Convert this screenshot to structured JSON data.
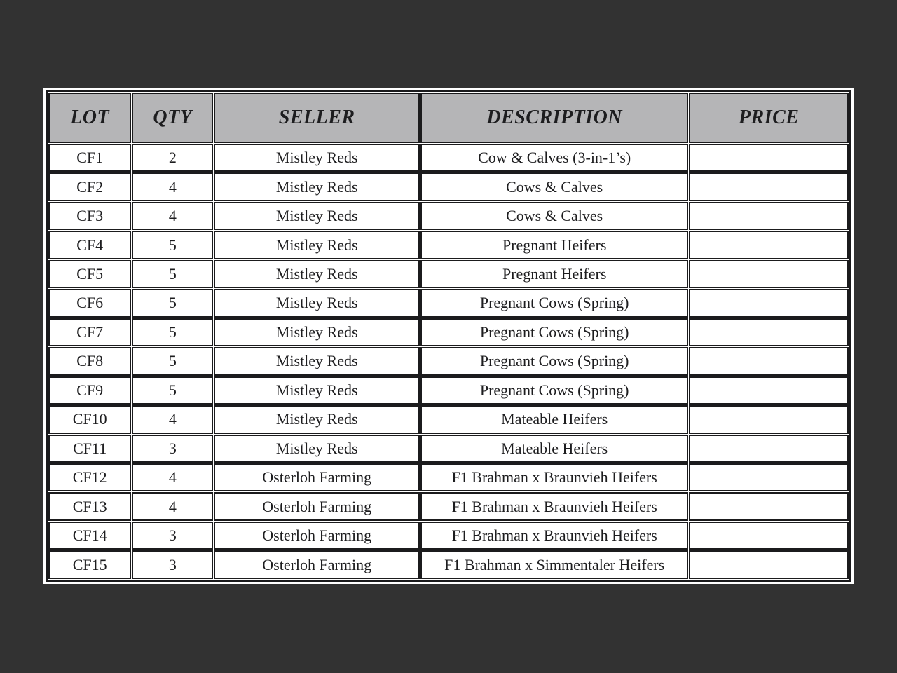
{
  "colors": {
    "background": "#323232",
    "page": "#ffffff",
    "header_fill": "#b5b5b7",
    "border": "#1b1b1d",
    "text": "#1d1d1f"
  },
  "table": {
    "headers": [
      "LOT",
      "QTY",
      "SELLER",
      "DESCRIPTION",
      "PRICE"
    ],
    "rows": [
      {
        "lot": "CF1",
        "qty": "2",
        "seller": "Mistley Reds",
        "description": "Cow & Calves (3-in-1’s)",
        "price": ""
      },
      {
        "lot": "CF2",
        "qty": "4",
        "seller": "Mistley Reds",
        "description": "Cows & Calves",
        "price": ""
      },
      {
        "lot": "CF3",
        "qty": "4",
        "seller": "Mistley Reds",
        "description": "Cows & Calves",
        "price": ""
      },
      {
        "lot": "CF4",
        "qty": "5",
        "seller": "Mistley Reds",
        "description": "Pregnant Heifers",
        "price": ""
      },
      {
        "lot": "CF5",
        "qty": "5",
        "seller": "Mistley Reds",
        "description": "Pregnant Heifers",
        "price": ""
      },
      {
        "lot": "CF6",
        "qty": "5",
        "seller": "Mistley Reds",
        "description": "Pregnant Cows (Spring)",
        "price": ""
      },
      {
        "lot": "CF7",
        "qty": "5",
        "seller": "Mistley Reds",
        "description": "Pregnant Cows (Spring)",
        "price": ""
      },
      {
        "lot": "CF8",
        "qty": "5",
        "seller": "Mistley Reds",
        "description": "Pregnant Cows (Spring)",
        "price": ""
      },
      {
        "lot": "CF9",
        "qty": "5",
        "seller": "Mistley Reds",
        "description": "Pregnant Cows (Spring)",
        "price": ""
      },
      {
        "lot": "CF10",
        "qty": "4",
        "seller": "Mistley Reds",
        "description": "Mateable Heifers",
        "price": ""
      },
      {
        "lot": "CF11",
        "qty": "3",
        "seller": "Mistley Reds",
        "description": "Mateable Heifers",
        "price": ""
      },
      {
        "lot": "CF12",
        "qty": "4",
        "seller": "Osterloh Farming",
        "description": "F1 Brahman x Braunvieh Heifers",
        "price": ""
      },
      {
        "lot": "CF13",
        "qty": "4",
        "seller": "Osterloh Farming",
        "description": "F1 Brahman x Braunvieh Heifers",
        "price": ""
      },
      {
        "lot": "CF14",
        "qty": "3",
        "seller": "Osterloh Farming",
        "description": "F1 Brahman x Braunvieh Heifers",
        "price": ""
      },
      {
        "lot": "CF15",
        "qty": "3",
        "seller": "Osterloh Farming",
        "description": "F1 Brahman x Simmentaler Heifers",
        "price": ""
      }
    ]
  }
}
